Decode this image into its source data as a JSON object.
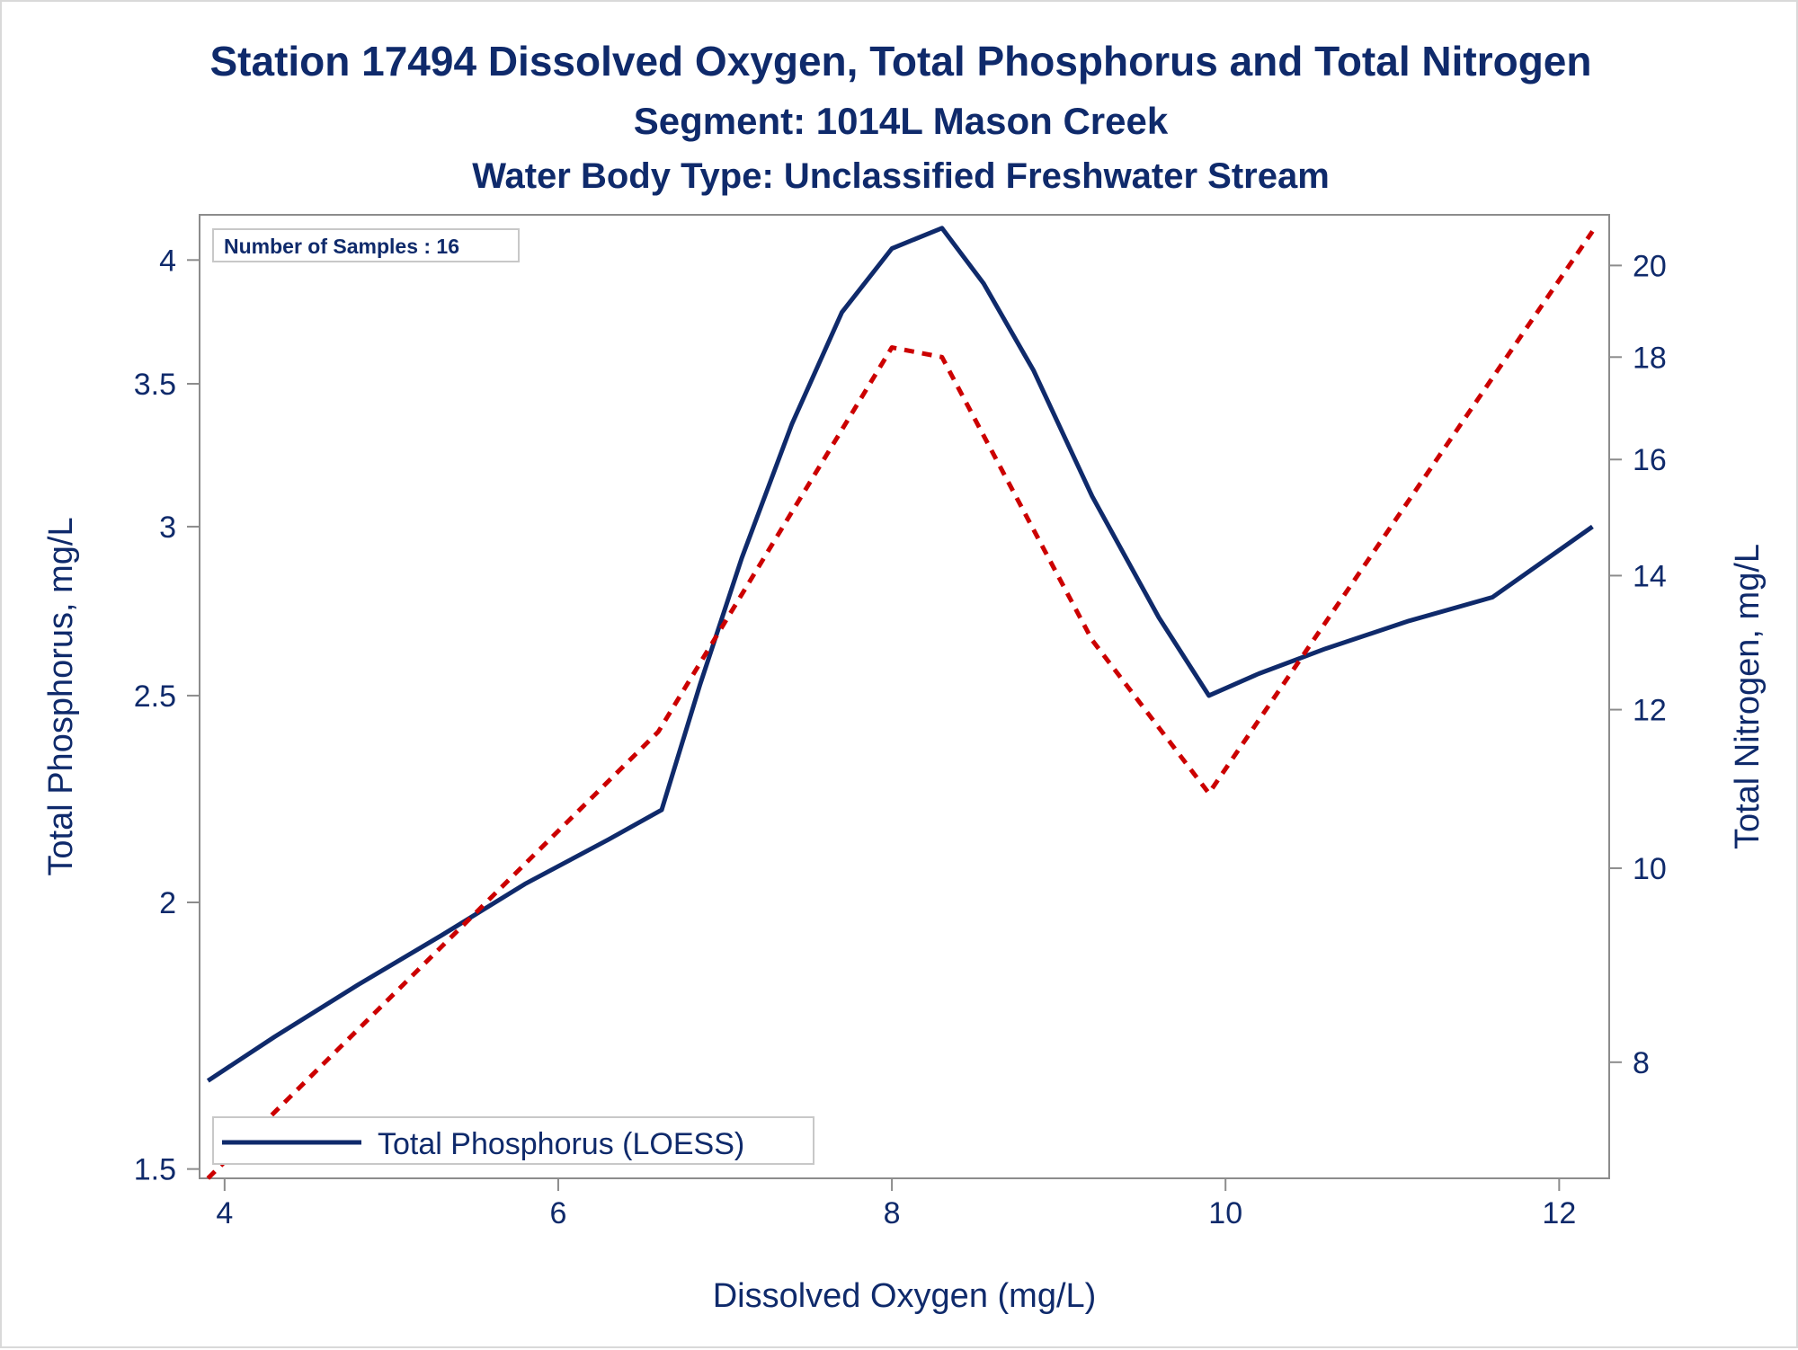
{
  "chart_data": {
    "type": "line",
    "title": "Station 17494  Dissolved Oxygen, Total Phosphorus and Total Nitrogen",
    "subtitle": "Segment: 1014L  Mason Creek",
    "subtitle2": "Water Body Type: Unclassified Freshwater Stream",
    "xlabel": "Dissolved Oxygen (mg/L)",
    "ylabel_left": "Total Phosphorus, mg/L",
    "ylabel_right": "Total Nitrogen, mg/L",
    "inset_label": "Number of Samples : 16",
    "legend": {
      "position": "bottom-left",
      "entries": [
        "Total Phosphorus (LOESS)"
      ]
    },
    "xlim": [
      3.85,
      12.3
    ],
    "ylim_left": [
      1.485,
      4.2
    ],
    "ylim_right": [
      7.0,
      21.2
    ],
    "y_scale": "log",
    "grid": false,
    "x_ticks": [
      "4",
      "6",
      "8",
      "10",
      "12"
    ],
    "y_left_ticks": [
      "1.5",
      "2",
      "2.5",
      "3",
      "3.5",
      "4"
    ],
    "y_right_ticks": [
      "8",
      "10",
      "12",
      "14",
      "16",
      "18",
      "20"
    ],
    "series": [
      {
        "name": "Total Phosphorus (LOESS)",
        "axis": "left",
        "color": "#0f2a6b",
        "style": "solid",
        "x": [
          3.9,
          4.3,
          4.8,
          5.3,
          5.8,
          6.3,
          6.62,
          6.85,
          7.1,
          7.4,
          7.7,
          8.0,
          8.3,
          8.55,
          8.85,
          9.2,
          9.6,
          9.9,
          10.2,
          10.6,
          11.1,
          11.6,
          12.2
        ],
        "values": [
          1.65,
          1.73,
          1.83,
          1.93,
          2.04,
          2.14,
          2.21,
          2.53,
          2.9,
          3.35,
          3.78,
          4.05,
          4.14,
          3.9,
          3.55,
          3.1,
          2.72,
          2.5,
          2.56,
          2.63,
          2.71,
          2.78,
          3.0
        ]
      },
      {
        "axis": "right",
        "color": "#cc0000",
        "style": "dashed",
        "x": [
          3.9,
          6.6,
          8.0,
          8.3,
          9.2,
          9.9,
          12.2
        ],
        "values": [
          7.0,
          11.7,
          18.2,
          18.0,
          13.0,
          10.9,
          20.8
        ]
      }
    ]
  }
}
